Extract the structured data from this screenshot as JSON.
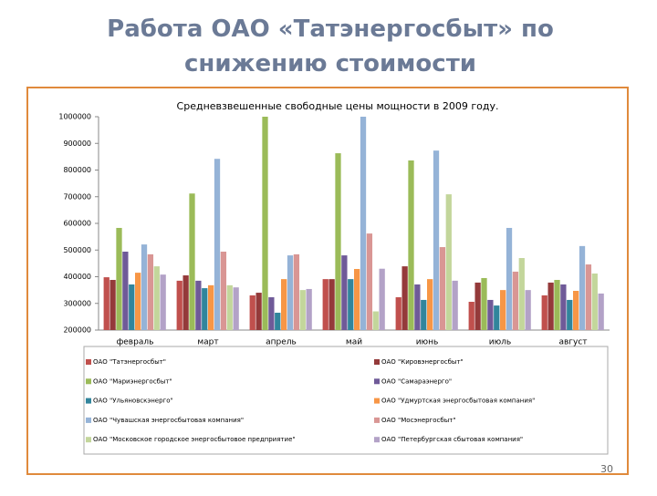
{
  "slide": {
    "title": "Работа ОАО «Татэнергосбыт» по снижению стоимости",
    "page_number": "30"
  },
  "chart_data": {
    "type": "bar",
    "title": "Средневзвешенные свободные цены мощности в 2009 году.",
    "categories": [
      "февраль",
      "март",
      "апрель",
      "май",
      "июнь",
      "июль",
      "август"
    ],
    "series": [
      {
        "name": "ОАО \"Татэнергосбыт\"",
        "color": "#c0504d",
        "values": [
          398000,
          385000,
          330000,
          391000,
          323000,
          306000,
          330000
        ]
      },
      {
        "name": "ОАО \"Кировэнергосбыт\"",
        "color": "#943a3a",
        "values": [
          388000,
          405000,
          340000,
          391000,
          439000,
          378000,
          378000
        ]
      },
      {
        "name": "ОАО \"Мариэнергосбыт\"",
        "color": "#9bbb59",
        "values": [
          583000,
          712000,
          1000000,
          863000,
          836000,
          395000,
          388000
        ]
      },
      {
        "name": "ОАО \"Самараэнерго\"",
        "color": "#6f5a98",
        "values": [
          494000,
          385000,
          323000,
          480000,
          371000,
          313000,
          371000
        ]
      },
      {
        "name": "ОАО \"Ульяновскэнерго\"",
        "color": "#31859c",
        "values": [
          371000,
          357000,
          265000,
          391000,
          313000,
          292000,
          313000
        ]
      },
      {
        "name": "ОАО \"Удмуртская энергосбытовая компания\"",
        "color": "#f79646",
        "values": [
          415000,
          368000,
          391000,
          429000,
          391000,
          350000,
          347000
        ]
      },
      {
        "name": "ОАО \"Чувашская энергосбытовая компания\"",
        "color": "#95b3d7",
        "values": [
          521000,
          842000,
          480000,
          1000000,
          873000,
          583000,
          515000
        ]
      },
      {
        "name": "ОАО \"Мосэнергосбыт\"",
        "color": "#d99694",
        "values": [
          484000,
          494000,
          484000,
          562000,
          511000,
          419000,
          446000
        ]
      },
      {
        "name": "ОАО \"Московское городское энергосбытовое предприятие\"",
        "color": "#c3d69b",
        "values": [
          439000,
          368000,
          350000,
          270000,
          709000,
          470000,
          412000
        ]
      },
      {
        "name": "ОАО \"Петербургская сбытовая компания\"",
        "color": "#b3a2c7",
        "values": [
          408000,
          360000,
          354000,
          430000,
          385000,
          350000,
          337000
        ]
      }
    ],
    "ylim": [
      200000,
      1000000
    ],
    "yticks": [
      200000,
      300000,
      400000,
      500000,
      600000,
      700000,
      800000,
      900000,
      1000000
    ],
    "grid": false,
    "legend": "bottom"
  }
}
